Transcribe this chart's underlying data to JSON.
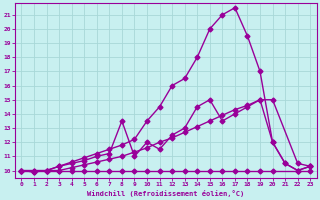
{
  "xlabel": "Windchill (Refroidissement éolien,°C)",
  "bg_color": "#c8f0f0",
  "grid_color": "#a8d8d8",
  "line_color": "#990099",
  "xlim": [
    -0.5,
    23.5
  ],
  "ylim": [
    9.5,
    21.8
  ],
  "xticks": [
    0,
    1,
    2,
    3,
    4,
    5,
    6,
    7,
    8,
    9,
    10,
    11,
    12,
    13,
    14,
    15,
    16,
    17,
    18,
    19,
    20,
    21,
    22,
    23
  ],
  "yticks": [
    10,
    11,
    12,
    13,
    14,
    15,
    16,
    17,
    18,
    19,
    20,
    21
  ],
  "line_flat_x": [
    0,
    1,
    2,
    3,
    4,
    5,
    6,
    7,
    8,
    9,
    10,
    11,
    12,
    13,
    14,
    15,
    16,
    17,
    18,
    19,
    20,
    22,
    23
  ],
  "line_flat_y": [
    10,
    10,
    10,
    10,
    10,
    10,
    10,
    10,
    10,
    10,
    10,
    10,
    10,
    10,
    10,
    10,
    10,
    10,
    10,
    10,
    10,
    10,
    10
  ],
  "line_diag1_x": [
    0,
    1,
    2,
    3,
    4,
    5,
    6,
    7,
    8,
    9,
    10,
    11,
    12,
    13,
    14,
    15,
    16,
    17,
    18,
    19,
    20,
    22,
    23
  ],
  "line_diag1_y": [
    10,
    10,
    10,
    10,
    10.2,
    10.4,
    10.6,
    10.8,
    11.0,
    11.3,
    11.6,
    12.0,
    12.3,
    12.7,
    13.1,
    13.5,
    13.9,
    14.3,
    14.6,
    15.0,
    15.0,
    10.5,
    10.3
  ],
  "line_diag2_x": [
    0,
    1,
    2,
    3,
    4,
    5,
    6,
    7,
    8,
    9,
    10,
    11,
    12,
    13,
    14,
    15,
    16,
    17,
    18,
    19,
    20,
    21,
    22,
    23
  ],
  "line_diag2_y": [
    10,
    9.9,
    10,
    10.3,
    10.5,
    10.7,
    11.0,
    11.2,
    13.5,
    11.0,
    12.0,
    11.5,
    12.5,
    13.0,
    14.5,
    15.0,
    13.5,
    14.0,
    14.5,
    15.0,
    12.0,
    10.5,
    10.0,
    10.3
  ],
  "line_top_x": [
    0,
    1,
    2,
    3,
    4,
    5,
    6,
    7,
    8,
    9,
    10,
    11,
    12,
    13,
    14,
    15,
    16,
    17,
    18,
    19,
    20,
    21,
    22,
    23
  ],
  "line_top_y": [
    10,
    9.9,
    10,
    10.3,
    10.6,
    10.9,
    11.2,
    11.5,
    11.8,
    12.2,
    13.5,
    14.5,
    16.0,
    16.5,
    18.0,
    20.0,
    21.0,
    21.5,
    19.5,
    17.0,
    12.0,
    10.5,
    10.0,
    10.3
  ],
  "marker": "D",
  "marker_size": 2.5,
  "line_width": 1.0
}
